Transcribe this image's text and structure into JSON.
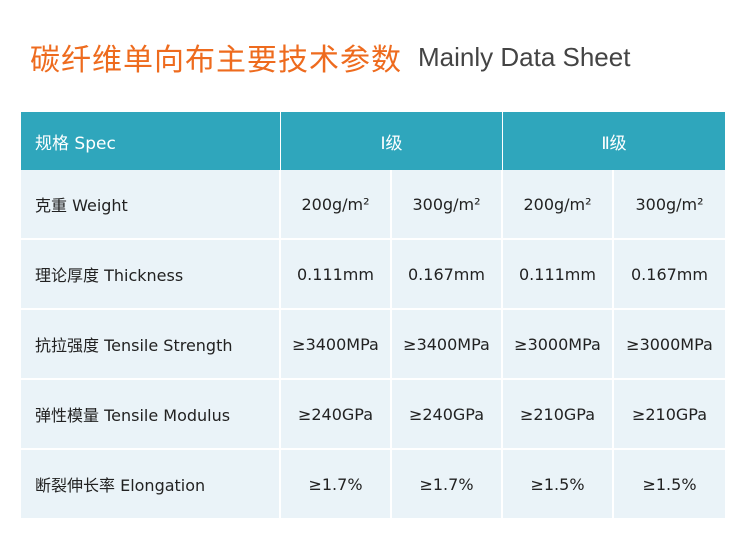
{
  "title": {
    "cn": "碳纤维单向布主要技术参数",
    "en": "Mainly Data Sheet"
  },
  "table": {
    "header": {
      "spec": "规格 Spec",
      "grade1": "Ⅰ级",
      "grade2": "Ⅱ级"
    },
    "rows": [
      {
        "label": "克重 Weight",
        "values": [
          "200g/m²",
          "300g/m²",
          "200g/m²",
          "300g/m²"
        ]
      },
      {
        "label": "理论厚度  Thickness",
        "values": [
          "0.111mm",
          "0.167mm",
          "0.111mm",
          "0.167mm"
        ]
      },
      {
        "label": "抗拉强度 Tensile Strength",
        "values": [
          "≥3400MPa",
          "≥3400MPa",
          "≥3000MPa",
          "≥3000MPa"
        ]
      },
      {
        "label": "弹性模量 Tensile Modulus",
        "values": [
          "≥240GPa",
          "≥240GPa",
          "≥210GPa",
          "≥210GPa"
        ]
      },
      {
        "label": "断裂伸长率 Elongation",
        "values": [
          "≥1.7%",
          "≥1.7%",
          "≥1.5%",
          "≥1.5%"
        ]
      }
    ]
  },
  "colors": {
    "title_cn": "#ee6b1e",
    "header_bg": "#2fa6bc",
    "cell_bg": "#eaf3f8"
  }
}
